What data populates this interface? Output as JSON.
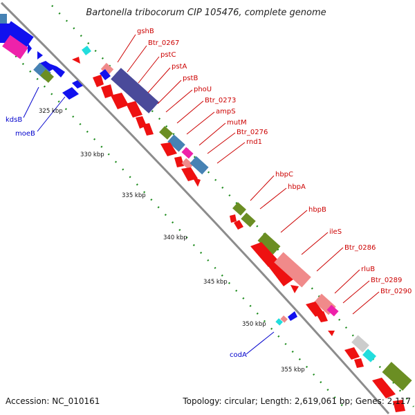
{
  "title": "Bartonella tribocorum CIP 105476, complete genome",
  "footer": {
    "accession": "Accession: NC_010161",
    "topology": "Topology: circular; Length: 2,619,061 bp; Genes: 2,117"
  },
  "colors": {
    "background": "#ffffff",
    "backbone": "#8c8c8c",
    "tick": "#1e8c1e",
    "forward_label": "#cc0000",
    "reverse_label": "#0000cc",
    "red": "#ee1111",
    "pink": "#f08a8a",
    "purple": "#4a4a9a",
    "olive": "#6b8e23",
    "steelblue": "#4682b4",
    "magenta": "#ee22aa",
    "cyan": "#22dddd",
    "gray": "#cccccc",
    "blue": "#1111ee"
  },
  "scale_labels": [
    "325 kbp",
    "330 kbp",
    "335 kbp",
    "340 kbp",
    "345 kbp",
    "350 kbp",
    "355 kbp"
  ],
  "forward_gene_labels": [
    "gshB",
    "Btr_0267",
    "pstC",
    "pstA",
    "pstB",
    "phoU",
    "Btr_0273",
    "ampS",
    "mutM",
    "Btr_0276",
    "rnd1",
    "hbpC",
    "hbpA",
    "hbpB",
    "ileS",
    "Btr_0286",
    "rluB",
    "Btr_0289",
    "Btr_0290"
  ],
  "reverse_gene_labels": [
    "kdsB",
    "moeB",
    "codA"
  ]
}
